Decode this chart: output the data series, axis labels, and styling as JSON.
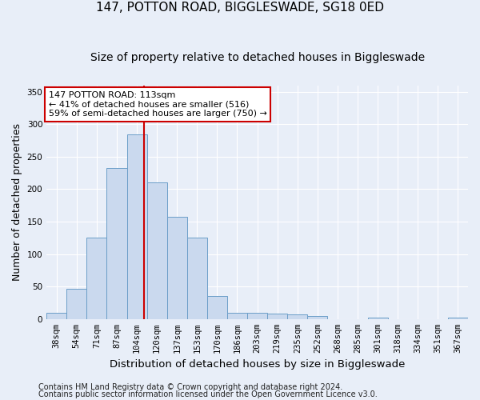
{
  "title": "147, POTTON ROAD, BIGGLESWADE, SG18 0ED",
  "subtitle": "Size of property relative to detached houses in Biggleswade",
  "xlabel": "Distribution of detached houses by size in Biggleswade",
  "ylabel": "Number of detached properties",
  "bar_labels": [
    "38sqm",
    "54sqm",
    "71sqm",
    "87sqm",
    "104sqm",
    "120sqm",
    "137sqm",
    "153sqm",
    "170sqm",
    "186sqm",
    "203sqm",
    "219sqm",
    "235sqm",
    "252sqm",
    "268sqm",
    "285sqm",
    "301sqm",
    "318sqm",
    "334sqm",
    "351sqm",
    "367sqm"
  ],
  "bar_heights": [
    10,
    46,
    126,
    232,
    284,
    210,
    157,
    125,
    35,
    10,
    10,
    8,
    7,
    5,
    0,
    0,
    2,
    0,
    0,
    0,
    2
  ],
  "bar_color": "#cad9ee",
  "bar_edge_color": "#6b9ec8",
  "vline_x_idx": 4,
  "vline_x_offset": 0.35,
  "vline_color": "#cc0000",
  "annotation_text": "147 POTTON ROAD: 113sqm\n← 41% of detached houses are smaller (516)\n59% of semi-detached houses are larger (750) →",
  "annotation_box_facecolor": "#ffffff",
  "annotation_box_edgecolor": "#cc0000",
  "ylim": [
    0,
    360
  ],
  "yticks": [
    0,
    50,
    100,
    150,
    200,
    250,
    300,
    350
  ],
  "footer1": "Contains HM Land Registry data © Crown copyright and database right 2024.",
  "footer2": "Contains public sector information licensed under the Open Government Licence v3.0.",
  "bg_color": "#e8eef8",
  "plot_bg_color": "#e8eef8",
  "grid_color": "#ffffff",
  "title_fontsize": 11,
  "subtitle_fontsize": 10,
  "ylabel_fontsize": 9,
  "xlabel_fontsize": 9.5,
  "tick_fontsize": 7.5,
  "annotation_fontsize": 8,
  "footer_fontsize": 7
}
